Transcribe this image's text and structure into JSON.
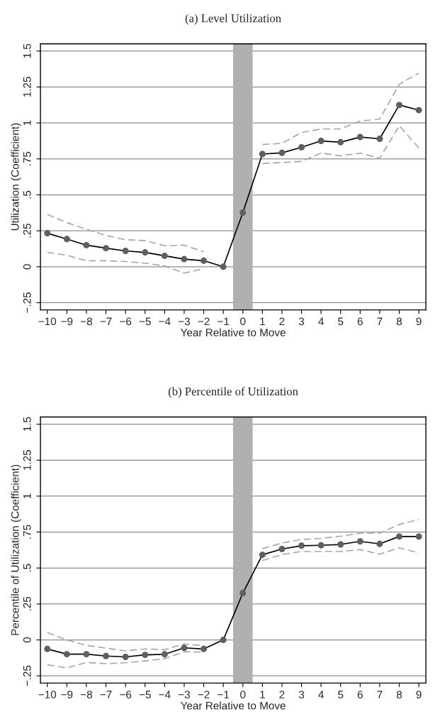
{
  "chart_data": [
    {
      "type": "line",
      "title": "(a) Level Utilization",
      "xlabel": "Year Relative to Move",
      "ylabel": "Utilization (Coefficient)",
      "x": [
        -10,
        -9,
        -8,
        -7,
        -6,
        -5,
        -4,
        -3,
        -2,
        -1,
        0,
        1,
        2,
        3,
        4,
        5,
        6,
        7,
        8,
        9
      ],
      "series": [
        {
          "color": "#000000",
          "marker": "circle",
          "line_style": "solid",
          "values": [
            0.233,
            0.193,
            0.15,
            0.129,
            0.11,
            0.1,
            0.076,
            0.053,
            0.042,
            0,
            0.377,
            0.784,
            0.792,
            0.831,
            0.875,
            0.866,
            0.902,
            0.89,
            1.125,
            1.089
          ]
        },
        {
          "color": "#a8a8a8",
          "marker": "none",
          "line_style": "dashed",
          "values": [
            0.364,
            0.307,
            0.26,
            0.218,
            0.188,
            0.182,
            0.146,
            0.15,
            0.104,
            null,
            null,
            0.85,
            0.858,
            0.934,
            0.958,
            0.958,
            1.013,
            1.027,
            1.269,
            1.347
          ]
        },
        {
          "color": "#a8a8a8",
          "marker": "none",
          "line_style": "dashed",
          "values": [
            0.1,
            0.08,
            0.042,
            0.042,
            0.036,
            0.025,
            0.006,
            -0.044,
            -0.013,
            null,
            null,
            0.718,
            0.725,
            0.733,
            0.79,
            0.771,
            0.79,
            0.754,
            0.981,
            0.826
          ]
        }
      ],
      "bands": [
        {
          "axis": "x",
          "from": -0.5,
          "to": 0.5,
          "color": "#b0b0b0"
        }
      ],
      "xlim": [
        -10.35,
        9.36
      ],
      "ylim": [
        -0.3,
        1.55
      ],
      "xticks": [
        {
          "value": -10,
          "label": "−10"
        },
        {
          "value": -9,
          "label": "−9"
        },
        {
          "value": -8,
          "label": "−8"
        },
        {
          "value": -7,
          "label": "−7"
        },
        {
          "value": -6,
          "label": "−6"
        },
        {
          "value": -5,
          "label": "−5"
        },
        {
          "value": -4,
          "label": "−4"
        },
        {
          "value": -3,
          "label": "−3"
        },
        {
          "value": -2,
          "label": "−2"
        },
        {
          "value": -1,
          "label": "−1"
        },
        0,
        1,
        2,
        3,
        4,
        5,
        6,
        7,
        8,
        9
      ],
      "yticks": [
        {
          "value": -0.25,
          "label": "−.25"
        },
        0,
        {
          "value": 0.25,
          "label": ".25"
        },
        {
          "value": 0.5,
          "label": ".5"
        },
        {
          "value": 0.75,
          "label": ".75"
        },
        1,
        1.25,
        1.5
      ],
      "grid": "y",
      "legend": false
    },
    {
      "type": "line",
      "title": "(b) Percentile of Utilization",
      "xlabel": "Year Relative to Move",
      "ylabel": "Percentile of Utilization (Coefficient)",
      "x": [
        -10,
        -9,
        -8,
        -7,
        -6,
        -5,
        -4,
        -3,
        -2,
        -1,
        0,
        1,
        2,
        3,
        4,
        5,
        6,
        7,
        8,
        9
      ],
      "series": [
        {
          "color": "#000000",
          "marker": "circle",
          "line_style": "solid",
          "values": [
            -0.063,
            -0.099,
            -0.099,
            -0.112,
            -0.118,
            -0.104,
            -0.1,
            -0.055,
            -0.063,
            0,
            0.326,
            0.592,
            0.632,
            0.655,
            0.658,
            0.664,
            0.685,
            0.668,
            0.719,
            0.719
          ]
        },
        {
          "color": "#a8a8a8",
          "marker": "none",
          "line_style": "dashed",
          "values": [
            0.051,
            0,
            -0.038,
            -0.057,
            -0.076,
            -0.063,
            -0.068,
            -0.028,
            -0.04,
            null,
            null,
            0.634,
            0.674,
            0.698,
            0.706,
            0.721,
            0.742,
            0.742,
            0.803,
            0.837
          ]
        },
        {
          "color": "#a8a8a8",
          "marker": "none",
          "line_style": "dashed",
          "values": [
            -0.173,
            -0.195,
            -0.157,
            -0.165,
            -0.159,
            -0.146,
            -0.131,
            -0.082,
            -0.085,
            null,
            null,
            0.552,
            0.594,
            0.615,
            0.615,
            0.615,
            0.628,
            0.596,
            0.641,
            0.605
          ]
        }
      ],
      "bands": [
        {
          "axis": "x",
          "from": -0.5,
          "to": 0.5,
          "color": "#b0b0b0"
        }
      ],
      "xlim": [
        -10.35,
        9.36
      ],
      "ylim": [
        -0.3,
        1.55
      ],
      "xticks": [
        {
          "value": -10,
          "label": "−10"
        },
        {
          "value": -9,
          "label": "−9"
        },
        {
          "value": -8,
          "label": "−8"
        },
        {
          "value": -7,
          "label": "−7"
        },
        {
          "value": -6,
          "label": "−6"
        },
        {
          "value": -5,
          "label": "−5"
        },
        {
          "value": -4,
          "label": "−4"
        },
        {
          "value": -3,
          "label": "−3"
        },
        {
          "value": -2,
          "label": "−2"
        },
        {
          "value": -1,
          "label": "−1"
        },
        0,
        1,
        2,
        3,
        4,
        5,
        6,
        7,
        8,
        9
      ],
      "yticks": [
        {
          "value": -0.25,
          "label": "−.25"
        },
        0,
        {
          "value": 0.25,
          "label": ".25"
        },
        {
          "value": 0.5,
          "label": ".5"
        },
        {
          "value": 0.75,
          "label": ".75"
        },
        1,
        1.25,
        1.5
      ],
      "grid": "y",
      "legend": false
    }
  ]
}
